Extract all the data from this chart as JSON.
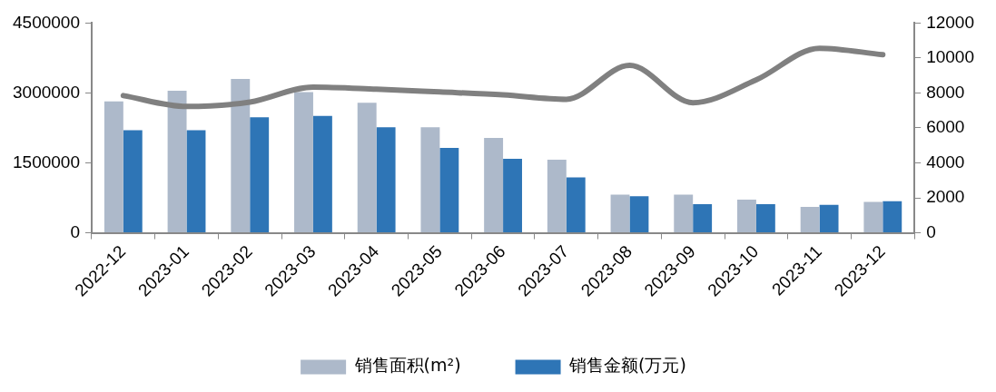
{
  "chart_data": {
    "type": "bar",
    "categories": [
      "2022-12",
      "2023-01",
      "2023-02",
      "2023-03",
      "2023-04",
      "2023-05",
      "2023-06",
      "2023-07",
      "2023-08",
      "2023-09",
      "2023-10",
      "2023-11",
      "2023-12"
    ],
    "series": [
      {
        "name": "销售面积(m²)",
        "color": "#adb9ca",
        "values": [
          2820000,
          3050000,
          3300000,
          3020000,
          2790000,
          2265000,
          2035000,
          1570000,
          817000,
          817000,
          710000,
          555000,
          663000
        ]
      },
      {
        "name": "销售金额(万元)",
        "color": "#2e75b6",
        "values": [
          2200000,
          2200000,
          2480000,
          2510000,
          2265000,
          1820000,
          1590000,
          1190000,
          785000,
          615000,
          615000,
          600000,
          680000
        ]
      },
      {
        "type": "line",
        "axis": "y2",
        "color": "#808080",
        "values": [
          7850,
          7230,
          7480,
          8340,
          8220,
          8060,
          7890,
          7640,
          9580,
          7440,
          8750,
          10560,
          10190
        ]
      }
    ],
    "ylim": [
      0,
      4500000
    ],
    "yticks": [
      0,
      1500000,
      3000000,
      4500000
    ],
    "y2lim": [
      0,
      12000
    ],
    "y2ticks": [
      0,
      2000,
      4000,
      6000,
      8000,
      10000,
      12000
    ],
    "grid": false,
    "legend": "bottom",
    "marker": "none"
  }
}
